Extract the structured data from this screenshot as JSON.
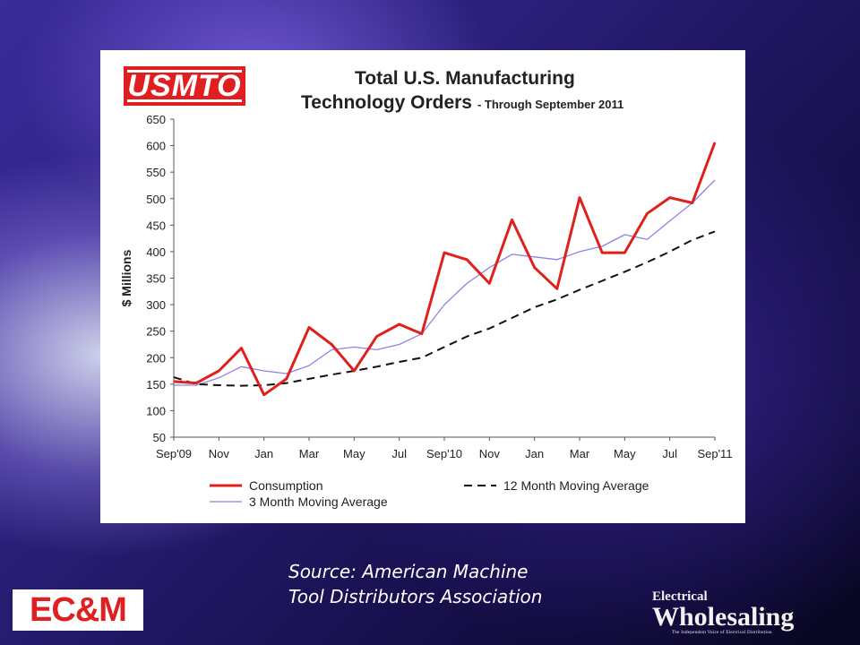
{
  "slide": {
    "source_line1": "Source: American Machine",
    "source_line2": "Tool Distributors Association",
    "logo_left": "EC&M",
    "logo_right_line1": "Electrical",
    "logo_right_line2": "Wholesaling",
    "logo_right_tagline": "The Independent Voice of Electrical Distribution"
  },
  "chart_data": {
    "type": "line",
    "logo_text": "USMTO",
    "title_line1": "Total U.S. Manufacturing",
    "title_line2": "Technology Orders",
    "subtitle": "- Through September 2011",
    "ylabel": "$ Millions",
    "xlabel": "",
    "ylim": [
      50,
      650
    ],
    "yticks": [
      50,
      100,
      150,
      200,
      250,
      300,
      350,
      400,
      450,
      500,
      550,
      600,
      650
    ],
    "x_tick_labels": [
      "Sep'09",
      "Nov",
      "Jan",
      "Mar",
      "May",
      "Jul",
      "Sep'10",
      "Nov",
      "Jan",
      "Mar",
      "May",
      "Jul",
      "Sep'11"
    ],
    "grid": false,
    "legend_position": "bottom",
    "series": [
      {
        "name": "Consumption",
        "color": "#e0201b",
        "style": "solid",
        "values": [
          155,
          152,
          175,
          218,
          130,
          160,
          257,
          225,
          175,
          240,
          263,
          245,
          398,
          385,
          340,
          460,
          370,
          330,
          502,
          398,
          398,
          472,
          502,
          492,
          606
        ]
      },
      {
        "name": "12 Month Moving Average",
        "color": "#111111",
        "style": "dashed",
        "values": [
          163,
          150,
          148,
          147,
          148,
          152,
          160,
          168,
          175,
          183,
          192,
          200,
          220,
          240,
          255,
          275,
          295,
          310,
          328,
          345,
          362,
          380,
          400,
          422,
          438
        ]
      },
      {
        "name": "3 Month Moving Average",
        "color": "#8b84e8",
        "style": "solid",
        "values": [
          148,
          148,
          162,
          183,
          175,
          170,
          185,
          215,
          220,
          215,
          225,
          245,
          300,
          340,
          370,
          395,
          390,
          385,
          400,
          410,
          432,
          423,
          458,
          492,
          535
        ]
      }
    ]
  }
}
